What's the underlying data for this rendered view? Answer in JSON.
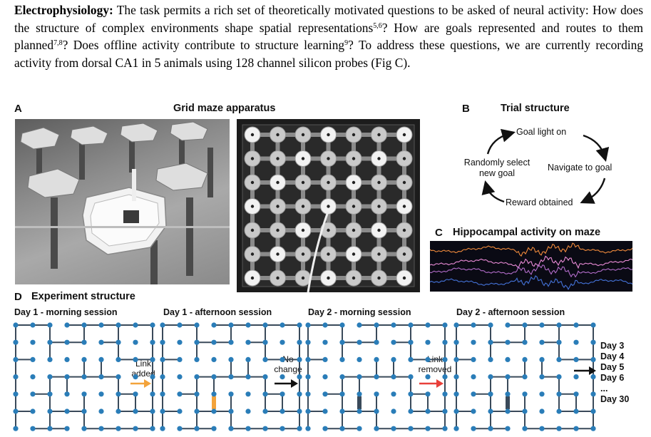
{
  "paragraph": {
    "heading": "Electrophysiology:",
    "segments": [
      {
        "text": " The task permits a rich set of theoretically motivated questions to be asked of neural activity: How does the structure of complex environments shape spatial representations"
      },
      {
        "sup": "5,6"
      },
      {
        "text": "? How are goals represented and routes to them planned"
      },
      {
        "sup": "7,8"
      },
      {
        "text": "? Does offline activity contribute to structure learning"
      },
      {
        "sup": "9"
      },
      {
        "text": "? To address these questions, we are currently recording activity from dorsal CA1 in 5 animals using 128 channel silicon probes (Fig C)."
      }
    ]
  },
  "panel_a": {
    "letter": "A",
    "title": "Grid maze apparatus"
  },
  "panel_b": {
    "letter": "B",
    "title": "Trial structure",
    "steps": [
      "Goal light on",
      "Navigate to goal",
      "Reward obtained",
      "Randomly select new goal"
    ]
  },
  "panel_c": {
    "letter": "C",
    "title": "Hippocampal activity on maze",
    "trace_colors": [
      "#f08a3c",
      "#e98bd6",
      "#b26cc9",
      "#4472d8"
    ]
  },
  "panel_d": {
    "letter": "D",
    "title": "Experiment structure",
    "sessions": [
      {
        "label": "Day 1 - morning session"
      },
      {
        "label": "Day 1 - afternoon session"
      },
      {
        "label": "Day 2 - morning session"
      },
      {
        "label": "Day 2 - afternoon session"
      }
    ],
    "transitions": [
      {
        "lines": [
          "Link",
          "added"
        ],
        "color": "#f3a33b"
      },
      {
        "lines": [
          "No",
          "change"
        ],
        "color": "#111111"
      },
      {
        "lines": [
          "Link",
          "removed"
        ],
        "color": "#e8403a"
      },
      {
        "lines": [],
        "color": "#111111"
      }
    ],
    "days_list": [
      "Day 3",
      "Day 4",
      "Day 5",
      "Day 6",
      "...",
      "Day 30"
    ],
    "node_color": "#2a7db8",
    "edge_color": "#3a4a5a",
    "added_link_color": "#f3a33b"
  }
}
